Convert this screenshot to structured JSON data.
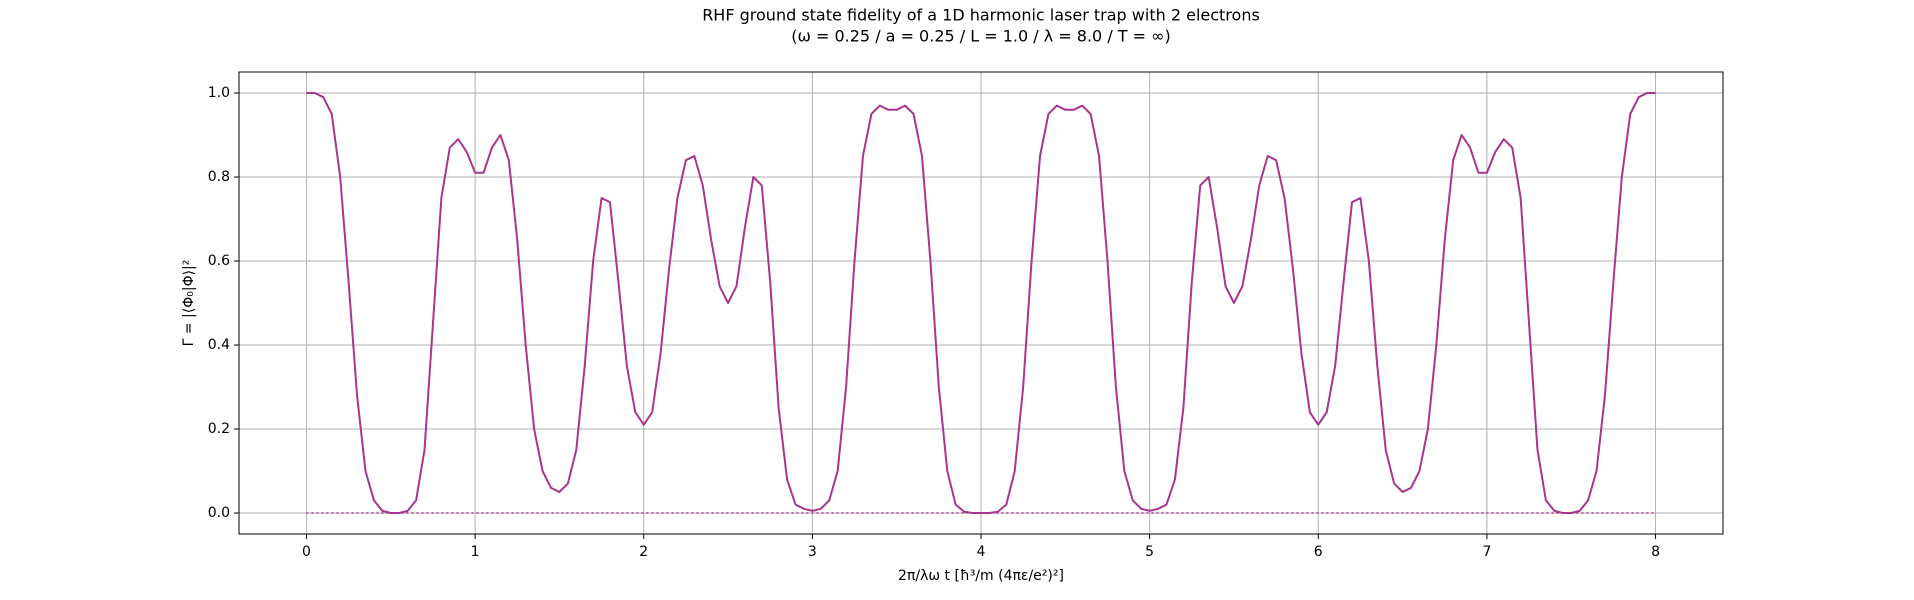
{
  "chart_data": {
    "type": "line",
    "title": "RHF ground state fidelity of a 1D harmonic laser trap with 2 electrons",
    "subtitle": "(ω = 0.25 / a = 0.25 / L = 1.0 / λ = 8.0 / T = ∞)",
    "x_label": "2π/λω t  [ħ³/m (4πε/e²)²]",
    "y_label": "Γ = |⟨Φ₀|Φ⟩|²",
    "x": [
      0,
      0.05,
      0.1,
      0.15,
      0.2,
      0.25,
      0.3,
      0.35,
      0.4,
      0.45,
      0.5,
      0.55,
      0.6,
      0.65,
      0.7,
      0.75,
      0.8,
      0.85,
      0.9,
      0.95,
      1,
      1.05,
      1.1,
      1.15,
      1.2,
      1.25,
      1.3,
      1.35,
      1.4,
      1.45,
      1.5,
      1.55,
      1.6,
      1.65,
      1.7,
      1.75,
      1.8,
      1.85,
      1.9,
      1.95,
      2,
      2.05,
      2.1,
      2.15,
      2.2,
      2.25,
      2.3,
      2.35,
      2.4,
      2.45,
      2.5,
      2.55,
      2.6,
      2.65,
      2.7,
      2.75,
      2.8,
      2.85,
      2.9,
      2.95,
      3,
      3.05,
      3.1,
      3.15,
      3.2,
      3.25,
      3.3,
      3.35,
      3.4,
      3.45,
      3.5,
      3.55,
      3.6,
      3.65,
      3.7,
      3.75,
      3.8,
      3.85,
      3.9,
      3.95,
      4,
      4.05,
      4.1,
      4.15,
      4.2,
      4.25,
      4.3,
      4.35,
      4.4,
      4.45,
      4.5,
      4.55,
      4.6,
      4.65,
      4.7,
      4.75,
      4.8,
      4.85,
      4.9,
      4.95,
      5,
      5.05,
      5.1,
      5.15,
      5.2,
      5.25,
      5.3,
      5.35,
      5.4,
      5.45,
      5.5,
      5.55,
      5.6,
      5.65,
      5.7,
      5.75,
      5.8,
      5.85,
      5.9,
      5.95,
      6,
      6.05,
      6.1,
      6.15,
      6.2,
      6.25,
      6.3,
      6.35,
      6.4,
      6.45,
      6.5,
      6.55,
      6.6,
      6.65,
      6.7,
      6.75,
      6.8,
      6.85,
      6.9,
      6.95,
      7,
      7.05,
      7.1,
      7.15,
      7.2,
      7.25,
      7.3,
      7.35,
      7.4,
      7.45,
      7.5,
      7.55,
      7.6,
      7.65,
      7.7,
      7.75,
      7.8,
      7.85,
      7.9,
      7.95,
      8
    ],
    "series": [
      {
        "color": "#a8358f",
        "style": "solid",
        "values": [
          1.0,
          1.0,
          0.99,
          0.95,
          0.8,
          0.55,
          0.28,
          0.1,
          0.03,
          0.005,
          0,
          0,
          0.005,
          0.03,
          0.15,
          0.45,
          0.75,
          0.87,
          0.89,
          0.86,
          0.81,
          0.81,
          0.87,
          0.9,
          0.84,
          0.65,
          0.4,
          0.2,
          0.1,
          0.06,
          0.05,
          0.07,
          0.15,
          0.35,
          0.6,
          0.75,
          0.74,
          0.55,
          0.35,
          0.24,
          0.21,
          0.24,
          0.38,
          0.58,
          0.75,
          0.84,
          0.85,
          0.78,
          0.65,
          0.54,
          0.5,
          0.54,
          0.68,
          0.8,
          0.78,
          0.55,
          0.25,
          0.08,
          0.02,
          0.01,
          0.005,
          0.01,
          0.03,
          0.1,
          0.3,
          0.6,
          0.85,
          0.95,
          0.97,
          0.96,
          0.96,
          0.97,
          0.95,
          0.85,
          0.6,
          0.3,
          0.1,
          0.02,
          0.003,
          0,
          0,
          0,
          0.003,
          0.02,
          0.1,
          0.3,
          0.6,
          0.85,
          0.95,
          0.97,
          0.96,
          0.96,
          0.97,
          0.95,
          0.85,
          0.6,
          0.3,
          0.1,
          0.03,
          0.01,
          0.005,
          0.01,
          0.02,
          0.08,
          0.25,
          0.55,
          0.78,
          0.8,
          0.68,
          0.54,
          0.5,
          0.54,
          0.65,
          0.78,
          0.85,
          0.84,
          0.75,
          0.58,
          0.38,
          0.24,
          0.21,
          0.24,
          0.35,
          0.55,
          0.74,
          0.75,
          0.6,
          0.35,
          0.15,
          0.07,
          0.05,
          0.06,
          0.1,
          0.2,
          0.4,
          0.65,
          0.84,
          0.9,
          0.87,
          0.81,
          0.81,
          0.86,
          0.89,
          0.87,
          0.75,
          0.45,
          0.15,
          0.03,
          0.005,
          0,
          0,
          0.005,
          0.03,
          0.1,
          0.28,
          0.55,
          0.8,
          0.95,
          0.99,
          1.0,
          1.0
        ]
      },
      {
        "color": "#a8358f",
        "style": "dotted",
        "x": [
          0,
          8
        ],
        "values": [
          0,
          0
        ]
      }
    ],
    "xlim": [
      -0.4,
      8.4
    ],
    "ylim": [
      -0.05,
      1.05
    ],
    "xticks": [
      0,
      1,
      2,
      3,
      4,
      5,
      6,
      7,
      8
    ],
    "yticks": [
      {
        "value": 0,
        "label": "0.0"
      },
      0.2,
      0.4,
      0.6,
      0.8,
      {
        "value": 1,
        "label": "1.0"
      }
    ],
    "grid": true
  }
}
